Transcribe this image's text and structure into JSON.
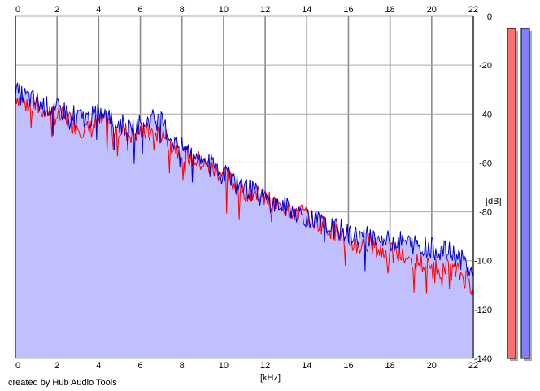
{
  "app": {
    "credit": "created by Hub Audio Tools"
  },
  "chart_data": {
    "type": "line",
    "title": "",
    "xlabel": "[kHz]",
    "ylabel": "[dB]",
    "xlim": [
      0,
      22
    ],
    "ylim": [
      -140,
      0
    ],
    "x_ticks": [
      0,
      2,
      4,
      6,
      8,
      10,
      12,
      14,
      16,
      18,
      20,
      22
    ],
    "y_ticks": [
      0,
      -20,
      -40,
      -60,
      -80,
      -100,
      -120,
      -140
    ],
    "grid": true,
    "legend": "none",
    "fill_below": "#c0c0ff",
    "x": [
      0,
      0.5,
      1,
      1.5,
      2,
      2.5,
      3,
      3.5,
      4,
      4.5,
      5,
      5.5,
      6,
      6.5,
      7,
      7.5,
      8,
      8.5,
      9,
      9.5,
      10,
      10.5,
      11,
      11.5,
      12,
      12.5,
      13,
      13.5,
      14,
      14.5,
      15,
      15.5,
      16,
      16.5,
      17,
      17.5,
      18,
      18.5,
      19,
      19.5,
      20,
      20.5,
      21,
      21.5,
      22
    ],
    "series": [
      {
        "color": "#ff0000",
        "values": [
          -32,
          -36,
          -37,
          -38,
          -41,
          -42,
          -45,
          -47,
          -43,
          -44,
          -46,
          -48,
          -47,
          -48,
          -48,
          -52,
          -56,
          -58,
          -60,
          -63,
          -64,
          -69,
          -71,
          -72,
          -75,
          -77,
          -78,
          -79,
          -82,
          -84,
          -86,
          -88,
          -92,
          -94,
          -93,
          -96,
          -97,
          -98,
          -100,
          -101,
          -103,
          -103,
          -104,
          -106,
          -110
        ]
      },
      {
        "color": "#0000cc",
        "values": [
          -31,
          -33,
          -35,
          -37,
          -38,
          -39,
          -41,
          -42,
          -40,
          -42,
          -44,
          -45,
          -44,
          -42,
          -43,
          -50,
          -54,
          -56,
          -58,
          -61,
          -63,
          -67,
          -70,
          -72,
          -75,
          -77,
          -78,
          -80,
          -82,
          -84,
          -85,
          -87,
          -89,
          -90,
          -90,
          -91,
          -92,
          -92,
          -93,
          -94,
          -95,
          -96,
          -97,
          -100,
          -106
        ]
      }
    ],
    "meters": [
      {
        "color": "#ff6f6f",
        "level": -5
      },
      {
        "color": "#7f7fff",
        "level": -5
      }
    ]
  }
}
